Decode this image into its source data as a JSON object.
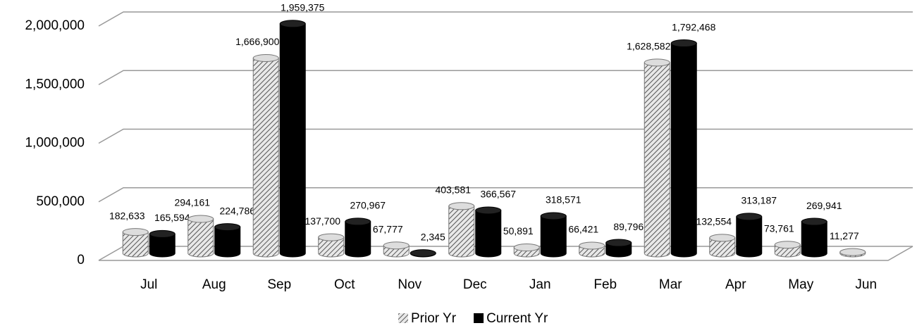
{
  "chart_data": {
    "type": "bar",
    "categories": [
      "Jul",
      "Aug",
      "Sep",
      "Oct",
      "Nov",
      "Dec",
      "Jan",
      "Feb",
      "Mar",
      "Apr",
      "May",
      "Jun"
    ],
    "series": [
      {
        "name": "Prior Yr",
        "color": "#9a9a9a",
        "values": [
          182633,
          294161,
          1666900,
          137700,
          67777,
          403581,
          50891,
          66421,
          1628582,
          132554,
          73761,
          11277
        ],
        "value_labels": [
          "182,633",
          "294,161",
          "1,666,900",
          "137,700",
          "67,777",
          "403,581",
          "50,891",
          "66,421",
          "1,628,582",
          "132,554",
          "73,761",
          "11,277"
        ]
      },
      {
        "name": "Current Yr",
        "color": "#000000",
        "values": [
          165594,
          224786,
          1959375,
          270967,
          2345,
          366567,
          318571,
          89796,
          1792468,
          313187,
          269941,
          null
        ],
        "value_labels": [
          "165,594",
          "224,786",
          "1,959,375",
          "270,967",
          "2,345",
          "366,567",
          "318,571",
          "89,796",
          "1,792,468",
          "313,187",
          "269,941",
          null
        ]
      }
    ],
    "ylim": [
      0,
      2000000
    ],
    "yticks": [
      {
        "value": 0,
        "label": "0"
      },
      {
        "value": 500000,
        "label": "500,000"
      },
      {
        "value": 1000000,
        "label": "1,000,000"
      },
      {
        "value": 1500000,
        "label": "1,500,000"
      },
      {
        "value": 2000000,
        "label": "2,000,000"
      }
    ],
    "grid": true,
    "legend": "bottom"
  }
}
